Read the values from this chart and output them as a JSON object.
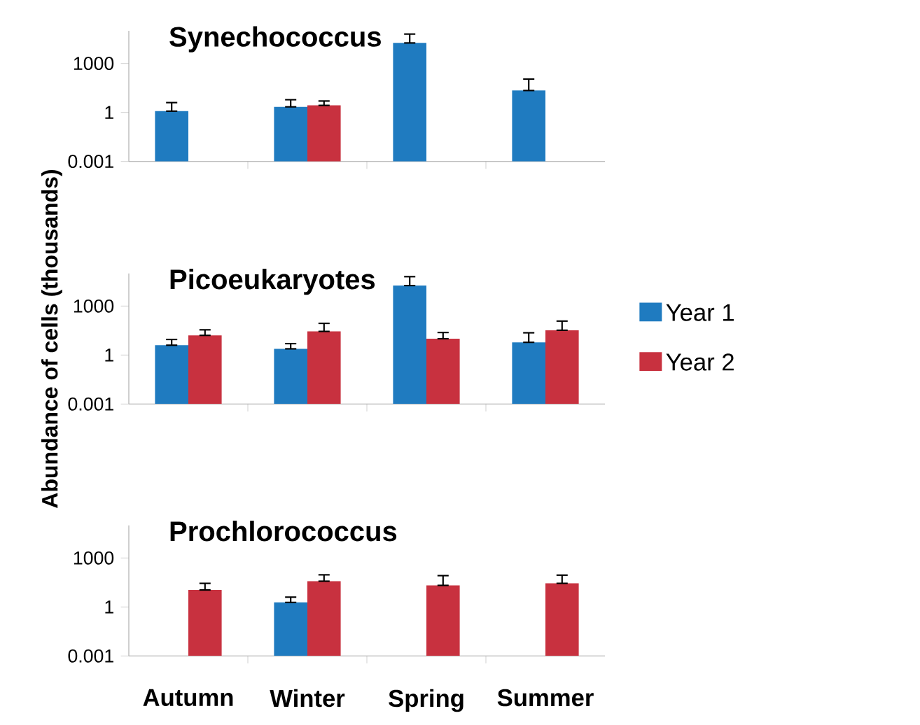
{
  "chart_data": [
    {
      "type": "bar",
      "title": "Synechococcus",
      "categories": [
        null,
        null,
        null,
        null
      ],
      "log": "y",
      "ylim": [
        0.001,
        100000
      ],
      "yticks": [
        0.001,
        1,
        1000
      ],
      "tick_labels": "y",
      "grid": false,
      "legend": false,
      "series": [
        {
          "color": "#1f7bc0",
          "values": [
            1.2,
            2.2,
            18000,
            22
          ],
          "errors": [
            [
              1.2,
              4
            ],
            [
              2.2,
              6
            ],
            [
              18000,
              63000
            ],
            [
              22,
              110
            ]
          ]
        },
        {
          "color": "#c8313f",
          "values": [
            null,
            2.7,
            null,
            null
          ],
          "errors": [
            null,
            [
              2.7,
              5
            ],
            null,
            null
          ]
        }
      ]
    },
    {
      "type": "bar",
      "title": "Picoeukaryotes",
      "ylabel": "Abundance of cells (thousands)",
      "categories": [
        null,
        null,
        null,
        null
      ],
      "log": "y",
      "ylim": [
        0.001,
        100000
      ],
      "yticks": [
        0.001,
        1,
        1000
      ],
      "tick_labels": "y",
      "grid": false,
      "legend": "right",
      "series": [
        {
          "name": "Year 1",
          "color": "#1f7bc0",
          "values": [
            4,
            2.4,
            18000,
            6
          ],
          "errors": [
            [
              4,
              9
            ],
            [
              2.4,
              5
            ],
            [
              18000,
              63000
            ],
            [
              6,
              23
            ]
          ]
        },
        {
          "name": "Year 2",
          "color": "#c8313f",
          "values": [
            16,
            28,
            10,
            33
          ],
          "errors": [
            [
              16,
              35
            ],
            [
              28,
              87
            ],
            [
              10,
              24
            ],
            [
              33,
              120
            ]
          ]
        }
      ]
    },
    {
      "type": "bar",
      "title": "Prochlorococcus",
      "categories": [
        "Autumn",
        "Winter",
        "Spring",
        "Summer"
      ],
      "log": "y",
      "ylim": [
        0.001,
        100000
      ],
      "yticks": [
        0.001,
        1,
        1000
      ],
      "grid": false,
      "legend": false,
      "series": [
        {
          "color": "#1f7bc0",
          "values": [
            null,
            1.9,
            null,
            null
          ],
          "errors": [
            null,
            [
              1.9,
              4
            ],
            null,
            null
          ]
        },
        {
          "color": "#c8313f",
          "values": [
            11,
            38,
            21,
            28
          ],
          "errors": [
            [
              11,
              28
            ],
            [
              38,
              93
            ],
            [
              21,
              83
            ],
            [
              28,
              89
            ]
          ]
        }
      ]
    }
  ]
}
